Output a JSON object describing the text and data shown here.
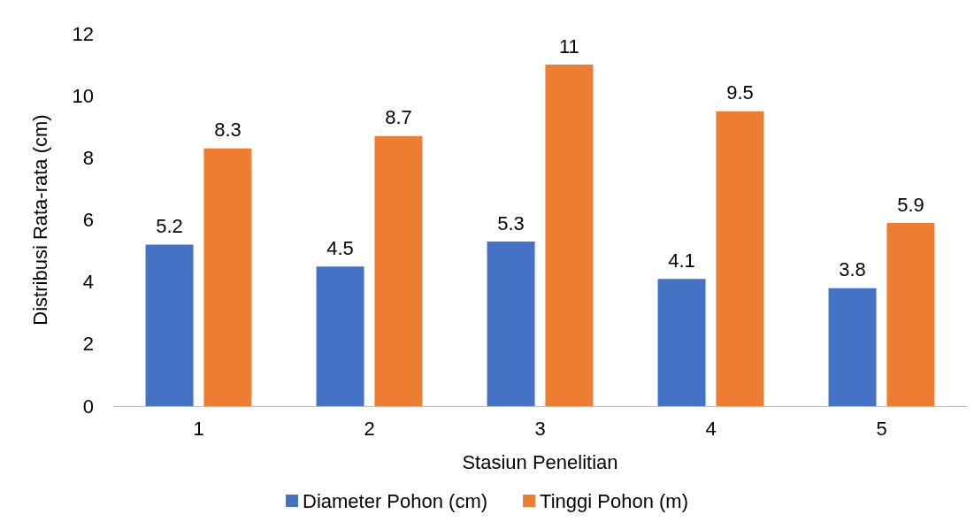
{
  "chart_data": {
    "type": "bar",
    "xlabel": "Stasiun Penelitian",
    "ylabel": "Distribusi Rata-rata (cm)",
    "categories": [
      "1",
      "2",
      "3",
      "4",
      "5"
    ],
    "series": [
      {
        "name": "Diameter Pohon (cm)",
        "color": "#4472c4",
        "values": [
          5.2,
          4.5,
          5.3,
          4.1,
          3.8
        ]
      },
      {
        "name": "Tinggi Pohon (m)",
        "color": "#ed7d31",
        "values": [
          8.3,
          8.7,
          11,
          9.5,
          5.9
        ]
      }
    ],
    "ylim": [
      0,
      12
    ],
    "yticks": [
      0,
      2,
      4,
      6,
      8,
      10,
      12
    ],
    "grid": false,
    "legend": "bottom",
    "data_labels": true
  }
}
